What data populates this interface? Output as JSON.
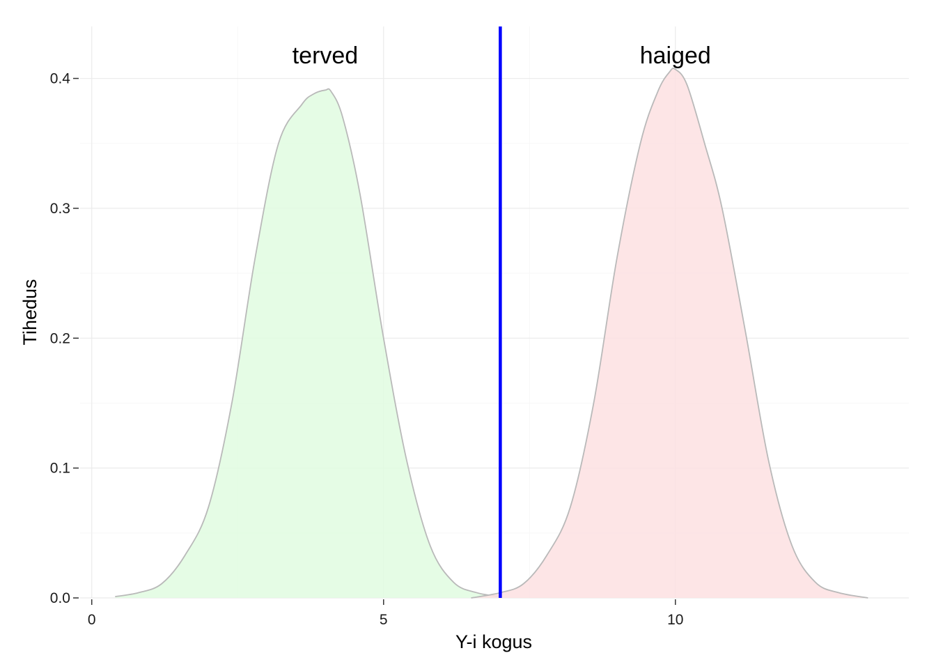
{
  "chart_data": {
    "type": "area",
    "title": "",
    "xlabel": "Y-i kogus",
    "ylabel": "Tihedus",
    "xlim": [
      -0.2,
      14
    ],
    "ylim": [
      0,
      0.44
    ],
    "x_ticks": [
      0,
      5,
      10
    ],
    "y_ticks": [
      0.0,
      0.1,
      0.2,
      0.3,
      0.4
    ],
    "x_tick_labels": [
      "0",
      "5",
      "10"
    ],
    "y_tick_labels": [
      "0.0",
      "0.1",
      "0.2",
      "0.3",
      "0.4"
    ],
    "threshold": {
      "x": 7,
      "color": "#0000ff"
    },
    "series": [
      {
        "name": "terved",
        "label_x": 4,
        "label_y": 0.418,
        "fill": "#e0fbe0",
        "stroke": "#b9b9b9",
        "x": [
          0.4,
          0.8,
          1.2,
          1.6,
          2.0,
          2.4,
          2.8,
          3.2,
          3.6,
          3.8,
          4.0,
          4.1,
          4.3,
          4.6,
          5.0,
          5.4,
          5.8,
          6.2,
          6.6,
          7.0
        ],
        "y": [
          0.001,
          0.004,
          0.011,
          0.033,
          0.07,
          0.15,
          0.262,
          0.35,
          0.38,
          0.388,
          0.391,
          0.39,
          0.37,
          0.31,
          0.2,
          0.105,
          0.04,
          0.012,
          0.004,
          0.001
        ]
      },
      {
        "name": "haiged",
        "label_x": 10,
        "label_y": 0.418,
        "fill": "#fde0e2",
        "stroke": "#b9b9b9",
        "x": [
          6.5,
          7.0,
          7.4,
          7.8,
          8.2,
          8.6,
          9.0,
          9.4,
          9.7,
          9.9,
          10.0,
          10.2,
          10.5,
          10.8,
          11.2,
          11.6,
          12.0,
          12.4,
          12.8,
          13.3
        ],
        "y": [
          0.0,
          0.004,
          0.011,
          0.033,
          0.07,
          0.15,
          0.262,
          0.35,
          0.39,
          0.405,
          0.407,
          0.395,
          0.35,
          0.3,
          0.205,
          0.105,
          0.04,
          0.012,
          0.004,
          0.0
        ]
      }
    ]
  }
}
